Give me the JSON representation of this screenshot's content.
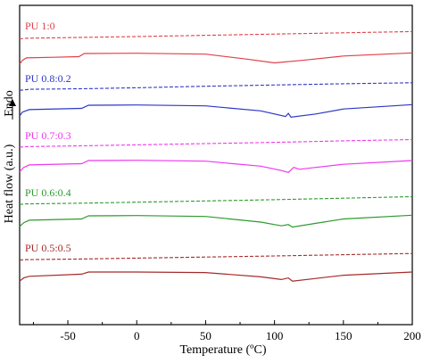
{
  "chart_data": {
    "type": "line",
    "title": "",
    "xlabel": "Temperature (ºC)",
    "ylabel": "Heat flow (a.u.)",
    "ylabel_arrow_text": "Endo",
    "xlim": [
      -85,
      200
    ],
    "xticks": [
      -50,
      0,
      50,
      100,
      150,
      200
    ],
    "y_axis_ticks": "none",
    "grid": false,
    "legend": "none",
    "notes_style": {
      "dashed": "upper trace of each pair",
      "solid": "lower trace of each pair"
    },
    "series": [
      {
        "name": "PU 1:0",
        "color": "#e0404a",
        "dashed": [
          [
            -85,
            0.25
          ],
          [
            -82,
            0.27
          ],
          [
            -78,
            0.3
          ],
          [
            -60,
            0.33
          ],
          [
            0,
            0.43
          ],
          [
            50,
            0.53
          ],
          [
            100,
            0.63
          ],
          [
            150,
            0.73
          ],
          [
            200,
            0.83
          ]
        ],
        "solid": [
          [
            -85,
            -0.85
          ],
          [
            -83,
            -0.55
          ],
          [
            -80,
            -0.35
          ],
          [
            -60,
            -0.3
          ],
          [
            -42,
            -0.25
          ],
          [
            -38,
            0.0
          ],
          [
            0,
            0.02
          ],
          [
            50,
            -0.05
          ],
          [
            80,
            -0.45
          ],
          [
            100,
            -0.75
          ],
          [
            120,
            -0.55
          ],
          [
            150,
            -0.2
          ],
          [
            200,
            0.05
          ]
        ]
      },
      {
        "name": "PU 0.8:0.2",
        "color": "#2e36c6",
        "dashed": [
          [
            -85,
            0.2
          ],
          [
            -82,
            0.22
          ],
          [
            -78,
            0.28
          ],
          [
            -40,
            0.32
          ],
          [
            0,
            0.4
          ],
          [
            50,
            0.52
          ],
          [
            100,
            0.62
          ],
          [
            150,
            0.72
          ],
          [
            200,
            0.8
          ]
        ],
        "solid": [
          [
            -85,
            -0.85
          ],
          [
            -83,
            -0.55
          ],
          [
            -78,
            -0.35
          ],
          [
            -40,
            -0.25
          ],
          [
            -35,
            0.0
          ],
          [
            0,
            0.02
          ],
          [
            50,
            -0.05
          ],
          [
            90,
            -0.45
          ],
          [
            108,
            -0.9
          ],
          [
            110,
            -0.65
          ],
          [
            112,
            -0.95
          ],
          [
            130,
            -0.7
          ],
          [
            150,
            -0.3
          ],
          [
            200,
            0.05
          ]
        ]
      },
      {
        "name": "PU 0.7:0.3",
        "color": "#ee38ee",
        "dashed": [
          [
            -85,
            0.22
          ],
          [
            -80,
            0.26
          ],
          [
            -40,
            0.32
          ],
          [
            0,
            0.4
          ],
          [
            50,
            0.5
          ],
          [
            100,
            0.6
          ],
          [
            150,
            0.72
          ],
          [
            200,
            0.82
          ]
        ],
        "solid": [
          [
            -85,
            -0.9
          ],
          [
            -82,
            -0.55
          ],
          [
            -78,
            -0.35
          ],
          [
            -40,
            -0.25
          ],
          [
            -35,
            0.0
          ],
          [
            0,
            0.02
          ],
          [
            50,
            -0.05
          ],
          [
            90,
            -0.45
          ],
          [
            105,
            -0.8
          ],
          [
            110,
            -0.95
          ],
          [
            114,
            -0.55
          ],
          [
            118,
            -0.7
          ],
          [
            130,
            -0.55
          ],
          [
            150,
            -0.3
          ],
          [
            200,
            0.0
          ]
        ]
      },
      {
        "name": "PU 0.6:0.4",
        "color": "#2e9a2e",
        "dashed": [
          [
            -85,
            0.2
          ],
          [
            -80,
            0.24
          ],
          [
            -40,
            0.3
          ],
          [
            0,
            0.38
          ],
          [
            50,
            0.48
          ],
          [
            100,
            0.58
          ],
          [
            150,
            0.7
          ],
          [
            200,
            0.82
          ]
        ],
        "solid": [
          [
            -85,
            -0.85
          ],
          [
            -82,
            -0.55
          ],
          [
            -78,
            -0.35
          ],
          [
            -40,
            -0.25
          ],
          [
            -35,
            0.0
          ],
          [
            0,
            0.02
          ],
          [
            50,
            -0.05
          ],
          [
            90,
            -0.5
          ],
          [
            105,
            -0.8
          ],
          [
            110,
            -0.7
          ],
          [
            113,
            -0.9
          ],
          [
            130,
            -0.6
          ],
          [
            150,
            -0.25
          ],
          [
            200,
            0.05
          ]
        ]
      },
      {
        "name": "PU 0.5:0.5",
        "color": "#a52a2a",
        "dashed": [
          [
            -85,
            0.2
          ],
          [
            -80,
            0.24
          ],
          [
            -40,
            0.3
          ],
          [
            0,
            0.38
          ],
          [
            50,
            0.48
          ],
          [
            100,
            0.58
          ],
          [
            150,
            0.7
          ],
          [
            200,
            0.82
          ]
        ],
        "solid": [
          [
            -85,
            -0.85
          ],
          [
            -82,
            -0.55
          ],
          [
            -78,
            -0.4
          ],
          [
            -40,
            -0.2
          ],
          [
            -35,
            0.0
          ],
          [
            0,
            0.0
          ],
          [
            50,
            -0.05
          ],
          [
            90,
            -0.45
          ],
          [
            105,
            -0.7
          ],
          [
            110,
            -0.55
          ],
          [
            113,
            -0.85
          ],
          [
            130,
            -0.6
          ],
          [
            150,
            -0.3
          ],
          [
            200,
            0.0
          ]
        ]
      }
    ]
  }
}
